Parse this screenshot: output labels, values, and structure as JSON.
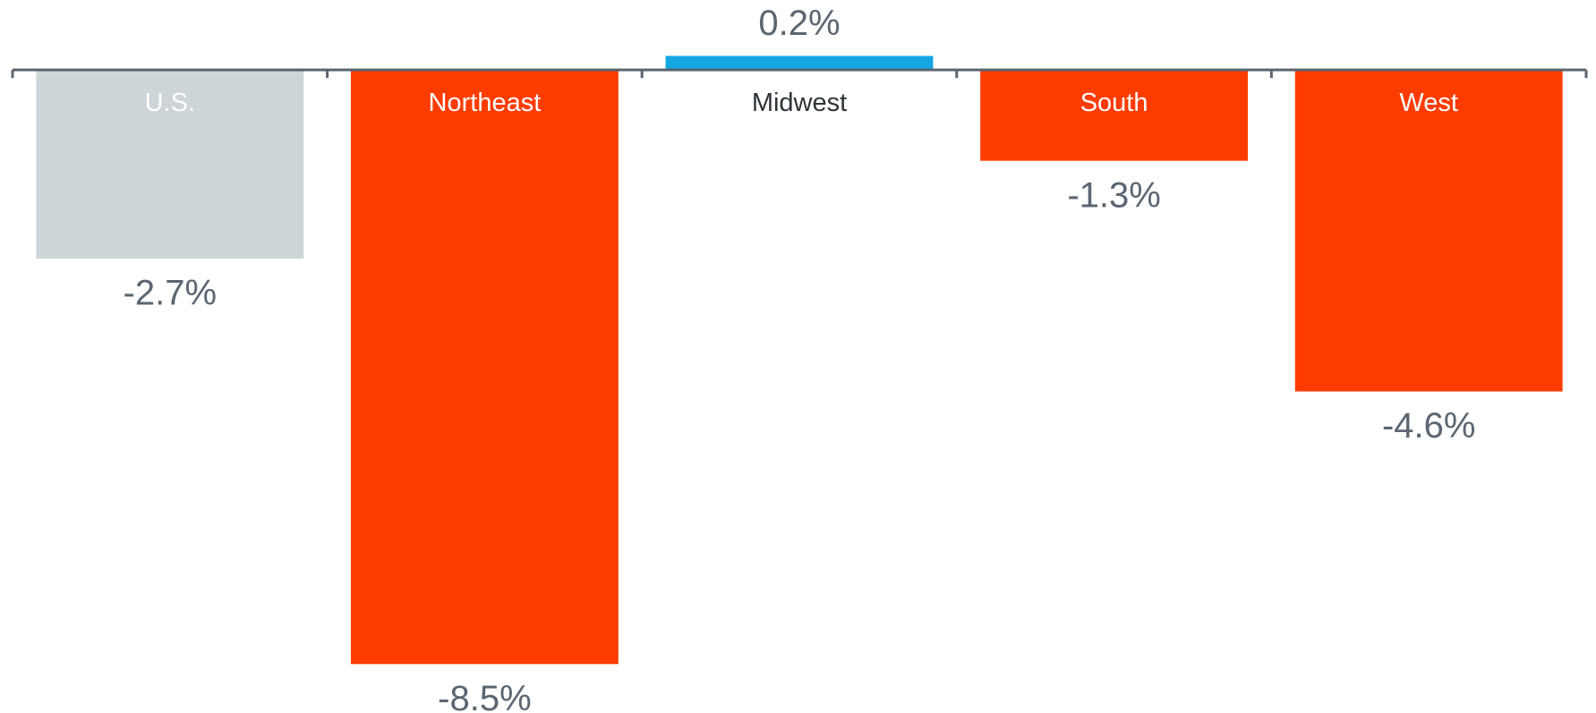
{
  "chart_data": {
    "type": "bar",
    "categories": [
      "U.S.",
      "Northeast",
      "Midwest",
      "South",
      "West"
    ],
    "values": [
      -2.7,
      -8.5,
      0.2,
      -1.3,
      -4.6
    ],
    "value_labels": [
      "-2.7%",
      "-8.5%",
      "0.2%",
      "-1.3%",
      "-4.6%"
    ],
    "colors": [
      "#cdd5d8",
      "#ff3c00",
      "#14a5e3",
      "#ff3c00",
      "#ff3c00"
    ],
    "ylim": [
      -9.2,
      1.0
    ]
  }
}
